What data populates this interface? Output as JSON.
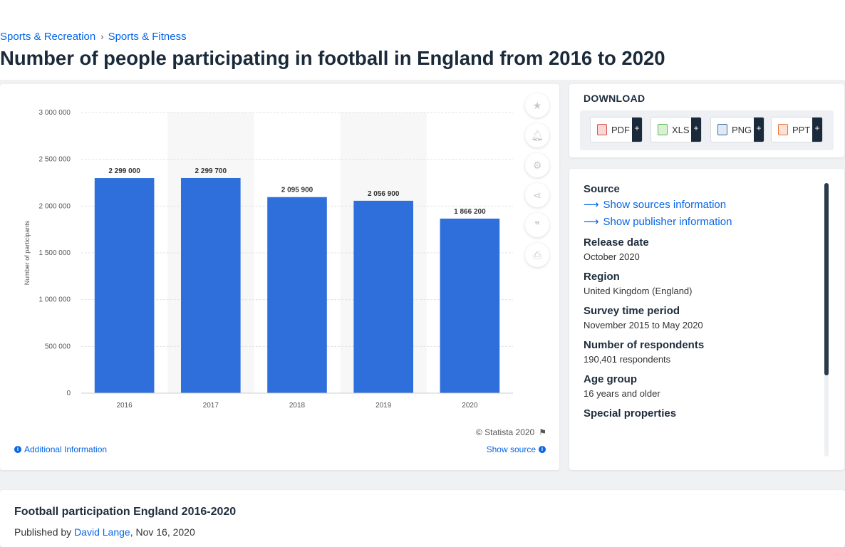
{
  "breadcrumb": {
    "items": [
      "Sports & Recreation",
      "Sports & Fitness"
    ],
    "separator": "›"
  },
  "page_title": "Number of people participating in football in England from 2016 to 2020",
  "chart_data": {
    "type": "bar",
    "categories": [
      "2016",
      "2017",
      "2018",
      "2019",
      "2020"
    ],
    "values": [
      2299000,
      2299700,
      2095900,
      2056900,
      1866200
    ],
    "value_labels": [
      "2 299 000",
      "2 299 700",
      "2 095 900",
      "2 056 900",
      "1 866 200"
    ],
    "ylabel": "Number of participants",
    "ylim": [
      0,
      3000000
    ],
    "yticks": [
      0,
      500000,
      1000000,
      1500000,
      2000000,
      2500000,
      3000000
    ],
    "ytick_labels": [
      "0",
      "500 000",
      "1 000 000",
      "1 500 000",
      "2 000 000",
      "2 500 000",
      "3 000 000"
    ],
    "bar_color": "#2f6fdb",
    "grid": true
  },
  "chart_footer": {
    "copyright": "© Statista 2020",
    "additional_info": "Additional Information",
    "show_source": "Show source"
  },
  "tools": [
    "star-icon",
    "bell-icon",
    "gear-icon",
    "share-icon",
    "quote-icon",
    "print-icon"
  ],
  "download": {
    "title": "DOWNLOAD",
    "buttons": [
      {
        "label": "PDF",
        "color": "#d9534f"
      },
      {
        "label": "XLS",
        "color": "#5cb85c"
      },
      {
        "label": "PNG",
        "color": "#3a6ea5"
      },
      {
        "label": "PPT",
        "color": "#e8743b"
      }
    ],
    "plus": "+"
  },
  "info": {
    "source_heading": "Source",
    "show_sources": "Show sources information",
    "show_publisher": "Show publisher information",
    "release_date_heading": "Release date",
    "release_date": "October 2020",
    "region_heading": "Region",
    "region": "United Kingdom (England)",
    "survey_period_heading": "Survey time period",
    "survey_period": "November 2015 to May 2020",
    "respondents_heading": "Number of respondents",
    "respondents": "190,401 respondents",
    "age_group_heading": "Age group",
    "age_group": "16 years and older",
    "special_heading": "Special properties"
  },
  "footer": {
    "title": "Football participation England 2016-2020",
    "published_by": "Published by",
    "author": "David Lange",
    "date": ", Nov 16, 2020"
  }
}
